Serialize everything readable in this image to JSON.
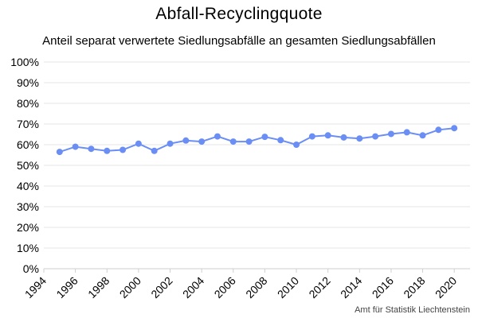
{
  "chart_data": {
    "type": "line",
    "title": "Abfall-Recyclingquote",
    "subtitle": "Anteil separat verwertete Siedlungsabfälle an gesamten Siedlungsabfällen",
    "source": "Amt für Statistik Liechtenstein",
    "xlabel": "",
    "ylabel": "",
    "xlim": [
      1994,
      2021
    ],
    "ylim": [
      0,
      100
    ],
    "x_ticks": [
      1994,
      1996,
      1998,
      2000,
      2002,
      2004,
      2006,
      2008,
      2010,
      2012,
      2014,
      2016,
      2018,
      2020
    ],
    "y_ticks": [
      0,
      10,
      20,
      30,
      40,
      50,
      60,
      70,
      80,
      90,
      100
    ],
    "y_tick_labels": [
      "0%",
      "10%",
      "20%",
      "30%",
      "40%",
      "50%",
      "60%",
      "70%",
      "80%",
      "90%",
      "100%"
    ],
    "grid": "horizontal",
    "legend": "none",
    "line_color": "#6b8ef5",
    "series": [
      {
        "x": [
          1995,
          1996,
          1997,
          1998,
          1999,
          2000,
          2001,
          2002,
          2003,
          2004,
          2005,
          2006,
          2007,
          2008,
          2009,
          2010,
          2011,
          2012,
          2013,
          2014,
          2015,
          2016,
          2017,
          2018,
          2019,
          2020
        ],
        "values": [
          56.5,
          59.0,
          58.0,
          57.0,
          57.5,
          60.5,
          57.0,
          60.5,
          62.0,
          61.5,
          64.0,
          61.5,
          61.5,
          63.8,
          62.2,
          60.0,
          64.0,
          64.5,
          63.5,
          63.0,
          64.0,
          65.2,
          66.0,
          64.5,
          67.2,
          68.0
        ]
      }
    ]
  }
}
